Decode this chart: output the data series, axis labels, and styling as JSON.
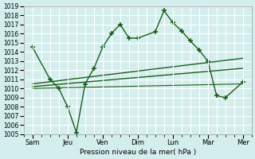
{
  "title": "",
  "xlabel": "Pression niveau de la mer( hPa )",
  "ylabel": "",
  "bg_color": "#d4eeee",
  "grid_color": "#ffffff",
  "line_color": "#1a5e1a",
  "x_ticks": [
    0,
    2,
    4,
    6,
    8,
    10,
    12
  ],
  "x_labels": [
    "Sam",
    "Jeu",
    "Ven",
    "Dim",
    "Lun",
    "Mar",
    "Mer"
  ],
  "ylim": [
    1005,
    1019
  ],
  "yticks": [
    1005,
    1006,
    1007,
    1008,
    1009,
    1010,
    1011,
    1012,
    1013,
    1014,
    1015,
    1016,
    1017,
    1018,
    1019
  ],
  "series1_x": [
    0,
    1,
    1.5,
    2,
    2.5,
    3,
    3.5,
    4,
    4.5,
    5,
    5.5,
    6,
    7,
    7.5,
    8,
    8.5,
    9,
    9.5,
    10,
    10.5,
    11,
    12
  ],
  "series1_y": [
    1014.5,
    1011.0,
    1010.0,
    1008.0,
    1005.2,
    1010.5,
    1012.2,
    1014.5,
    1016.0,
    1017.0,
    1015.5,
    1015.5,
    1016.2,
    1018.5,
    1017.2,
    1016.3,
    1015.2,
    1014.2,
    1013.0,
    1009.2,
    1009.0,
    1010.7
  ],
  "trend1_x": [
    0,
    12
  ],
  "trend1_y": [
    1010.5,
    1013.3
  ],
  "trend2_x": [
    0,
    12
  ],
  "trend2_y": [
    1010.2,
    1012.2
  ],
  "trend3_x": [
    0,
    12
  ],
  "trend3_y": [
    1010.0,
    1010.5
  ]
}
